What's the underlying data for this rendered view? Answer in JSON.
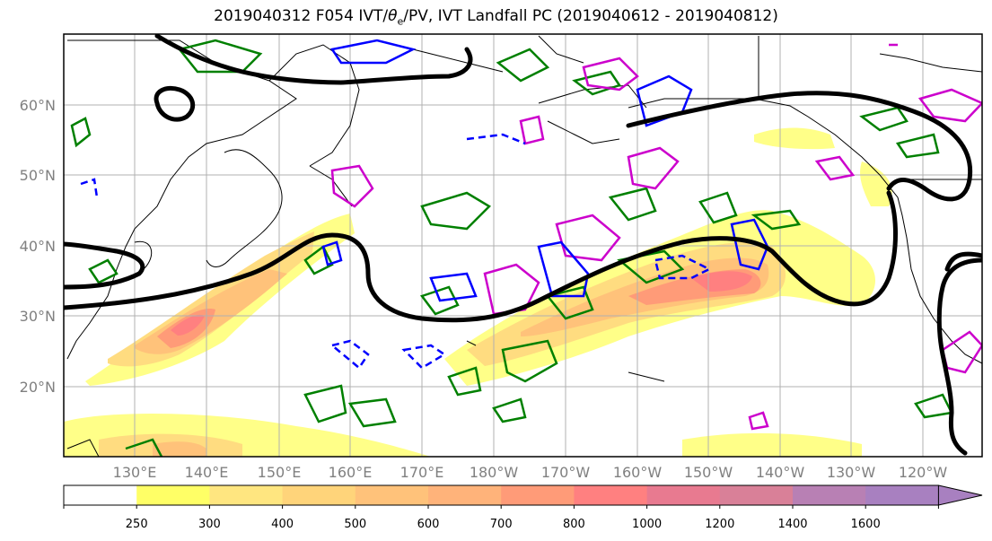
{
  "title": "2019040312 F054 IVT/θe/PV, IVT Landfall PC (2019040612 - 2019040812)",
  "title_parts": {
    "prefix": "2019040312 F054 IVT/",
    "theta": "θ",
    "sub": "e",
    "suffix": "/PV, IVT Landfall PC (2019040612 - 2019040812)"
  },
  "map": {
    "lat_labels": [
      "20°N",
      "30°N",
      "40°N",
      "50°N",
      "60°N"
    ],
    "lon_labels": [
      "130°E",
      "140°E",
      "150°E",
      "160°E",
      "170°E",
      "180°W",
      "170°W",
      "160°W",
      "150°W",
      "140°W",
      "130°W",
      "120°W"
    ],
    "contour_colors": {
      "landfall_pc": "#000000",
      "theta_e": "#008000",
      "pv_positive": "#0000ff",
      "pv_dashed": "#0000ff",
      "magenta": "#cc00cc"
    }
  },
  "colorbar": {
    "ticks": [
      "250",
      "300",
      "400",
      "500",
      "600",
      "700",
      "800",
      "1000",
      "1200",
      "1400",
      "1600"
    ],
    "colors": [
      "#ffff66",
      "#ffe680",
      "#ffd47a",
      "#ffc27a",
      "#ffb37a",
      "#ff9b78",
      "#ff8080",
      "#e87a90",
      "#d98098",
      "#b880b4",
      "#a880c0"
    ],
    "extend": "max"
  }
}
